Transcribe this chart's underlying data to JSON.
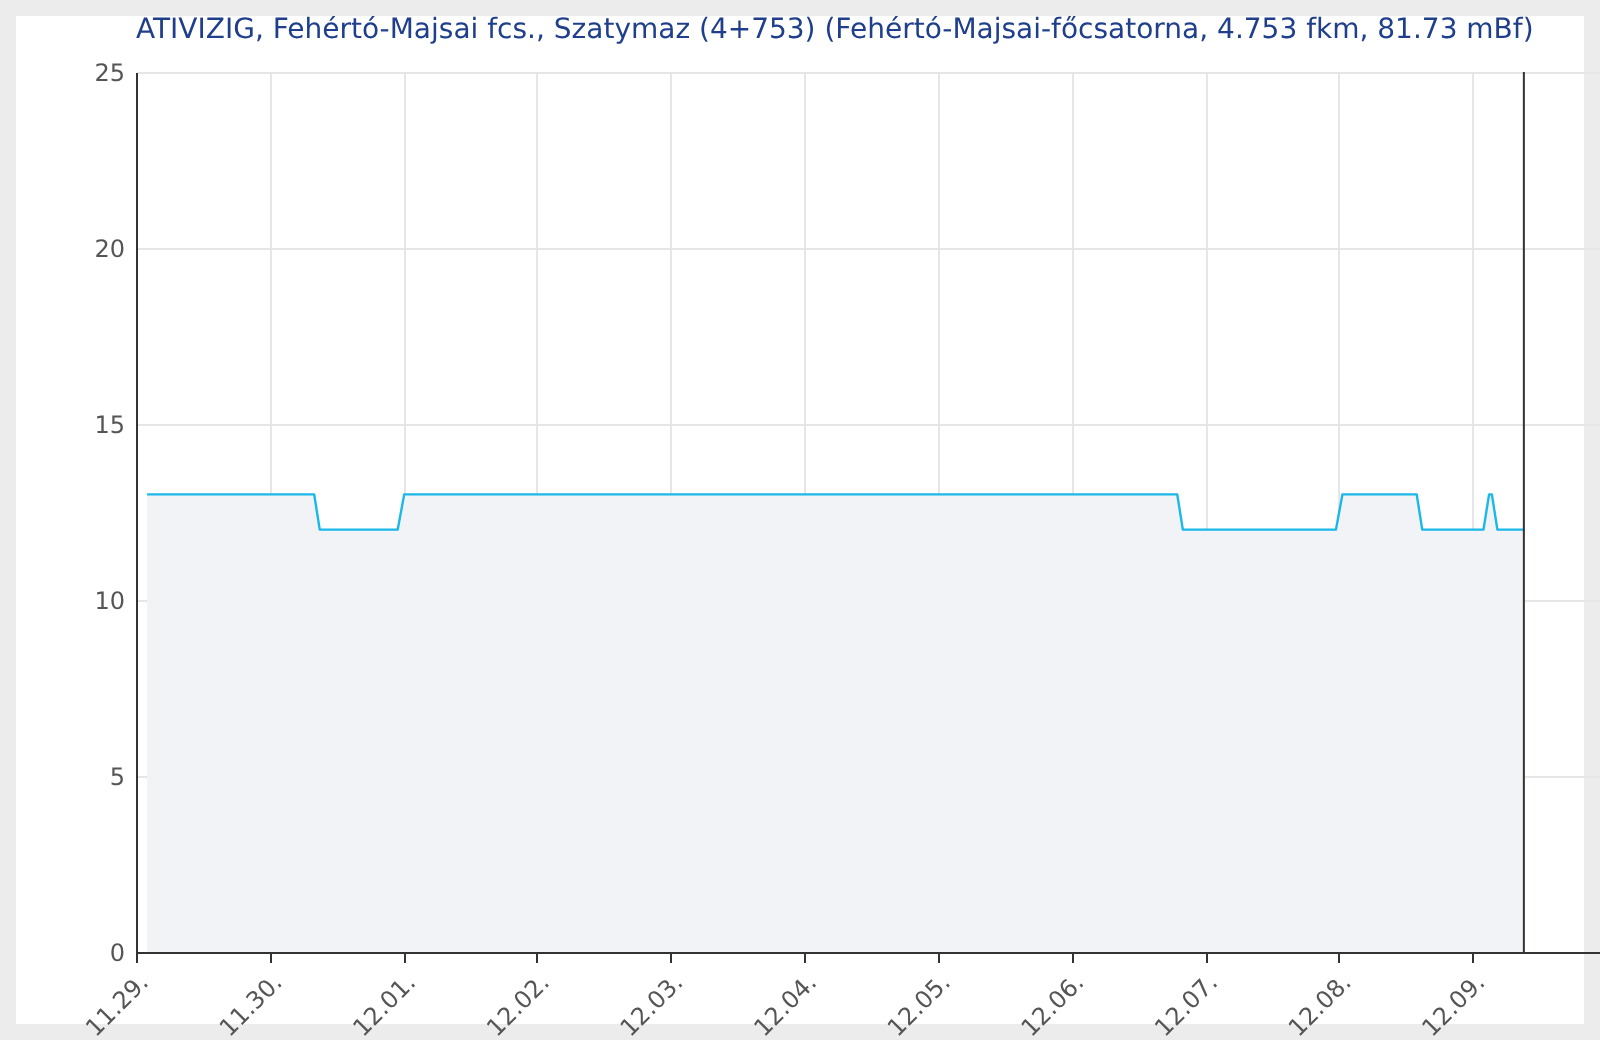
{
  "chart_data": {
    "type": "area",
    "title": "ATIVIZIG, Fehértó-Majsai fcs., Szatymaz (4+753) (Fehértó-Majsai-főcsatorna, 4.753 fkm, 81.73 mBf)",
    "x": [
      "--11-29T02:00",
      "--11-30T08:00",
      "--11-30T09:00",
      "--11-30T23:00",
      "--12-01T00:10",
      "--12-06T19:00",
      "--12-06T20:00",
      "--12-07T23:30",
      "--12-08T00:40",
      "--12-08T14:00",
      "--12-08T15:00",
      "--12-09T02:00",
      "--12-09T03:00",
      "--12-09T03:30",
      "--12-09T04:30",
      "--12-09T09:15"
    ],
    "series": [
      {
        "color": "#1ab8e8",
        "values": [
          13,
          13,
          12,
          12,
          13,
          13,
          12,
          12,
          13,
          13,
          12,
          12,
          13,
          13,
          12,
          12
        ]
      }
    ],
    "xlim": [
      "--11-29T00:00",
      "--12-10T00:00"
    ],
    "xticks": [
      {
        "value": "--11-29",
        "label": "11.29."
      },
      {
        "value": "--11-30",
        "label": "11.30."
      },
      {
        "value": "--12-01",
        "label": "12.01."
      },
      {
        "value": "--12-02",
        "label": "12.02."
      },
      {
        "value": "--12-03",
        "label": "12.03."
      },
      {
        "value": "--12-04",
        "label": "12.04."
      },
      {
        "value": "--12-05",
        "label": "12.05."
      },
      {
        "value": "--12-06",
        "label": "12.06."
      },
      {
        "value": "--12-07",
        "label": "12.07."
      },
      {
        "value": "--12-08",
        "label": "12.08."
      },
      {
        "value": "--12-09",
        "label": "12.09."
      }
    ],
    "ylim": [
      0,
      25
    ],
    "yticks": [
      0,
      5,
      10,
      15,
      20,
      25
    ],
    "ref_lines": [
      {
        "axis": "x",
        "value": "--12-09T09:15",
        "color": "#333333"
      }
    ],
    "grid": true
  }
}
